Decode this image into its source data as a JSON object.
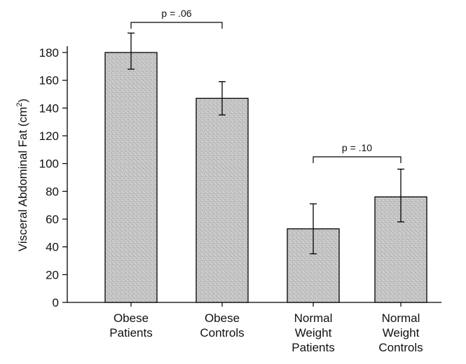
{
  "chart_data": {
    "type": "bar",
    "ylabel": "Visceral Abdominal Fat (cm",
    "ylabel_sup": "2",
    "ylabel_close": ")",
    "ylim": [
      0,
      180
    ],
    "yticks": [
      0,
      20,
      40,
      60,
      80,
      100,
      120,
      140,
      160,
      180
    ],
    "categories": [
      [
        "Obese",
        "Patients"
      ],
      [
        "Obese",
        "Controls"
      ],
      [
        "Normal",
        "Weight",
        "Patients"
      ],
      [
        "Normal",
        "Weight",
        "Controls"
      ]
    ],
    "values": [
      180,
      147,
      53,
      76
    ],
    "error_low": [
      168,
      135,
      35,
      58
    ],
    "error_high": [
      194,
      159,
      71,
      96
    ],
    "annotations": [
      {
        "text": "p = .06",
        "from": 0,
        "to": 1
      },
      {
        "text": "p = .10",
        "from": 2,
        "to": 3
      }
    ],
    "bar_color": "#c4c4c4",
    "grid": false
  }
}
